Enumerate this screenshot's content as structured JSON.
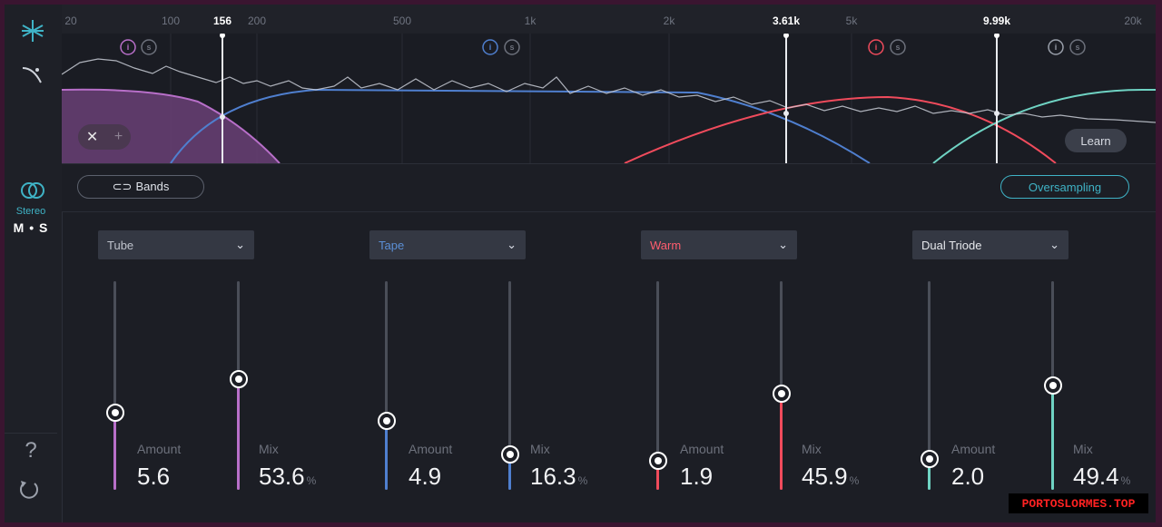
{
  "ruler": {
    "ticks": [
      {
        "label": "20",
        "active": false
      },
      {
        "label": "100",
        "active": false
      },
      {
        "label": "156",
        "active": true
      },
      {
        "label": "200",
        "active": false
      },
      {
        "label": "500",
        "active": false
      },
      {
        "label": "1k",
        "active": false
      },
      {
        "label": "2k",
        "active": false
      },
      {
        "label": "3.61k",
        "active": true
      },
      {
        "label": "5k",
        "active": false
      },
      {
        "label": "9.99k",
        "active": true
      },
      {
        "label": "20k",
        "active": false
      }
    ]
  },
  "rail": {
    "top_icon": "spectrum-asterisk-icon",
    "curve_icon": "curve-icon",
    "stereo_icon": "stereo-rings-icon",
    "stereo_label": "Stereo",
    "ms_label": "M • S",
    "help_label": "?",
    "reset_icon": "reset-icon"
  },
  "spectrum": {
    "band_buttons": [
      "i",
      "s"
    ],
    "clear_symbol": "✕",
    "add_symbol": "+",
    "learn_label": "Learn"
  },
  "toolbar": {
    "bands_label": "Bands",
    "bands_icon": "link-icon",
    "oversampling_label": "Oversampling"
  },
  "bands": [
    {
      "mode": "Tube",
      "mode_color": "#bfc3cc",
      "color": "#b86fc9",
      "amount_label": "Amount",
      "amount_value": "5.6",
      "amount_level": 0.37,
      "mix_label": "Mix",
      "mix_value": "53.6",
      "mix_unit": "%",
      "mix_level": 0.53
    },
    {
      "mode": "Tape",
      "mode_color": "#5b8fd6",
      "color": "#4f7fcf",
      "amount_label": "Amount",
      "amount_value": "4.9",
      "amount_level": 0.33,
      "mix_label": "Mix",
      "mix_value": "16.3",
      "mix_unit": "%",
      "mix_level": 0.17
    },
    {
      "mode": "Warm",
      "mode_color": "#ff5d6e",
      "color": "#f04b5c",
      "amount_label": "Amount",
      "amount_value": "1.9",
      "amount_level": 0.14,
      "mix_label": "Mix",
      "mix_value": "45.9",
      "mix_unit": "%",
      "mix_level": 0.46
    },
    {
      "mode": "Dual Triode",
      "mode_color": "#e6e8ec",
      "color": "#6fd3c3",
      "amount_label": "Amount",
      "amount_value": "2.0",
      "amount_level": 0.15,
      "mix_label": "Mix",
      "mix_value": "49.4",
      "mix_unit": "%",
      "mix_level": 0.5
    }
  ],
  "watermark": "PORTOSLORMES.TOP"
}
